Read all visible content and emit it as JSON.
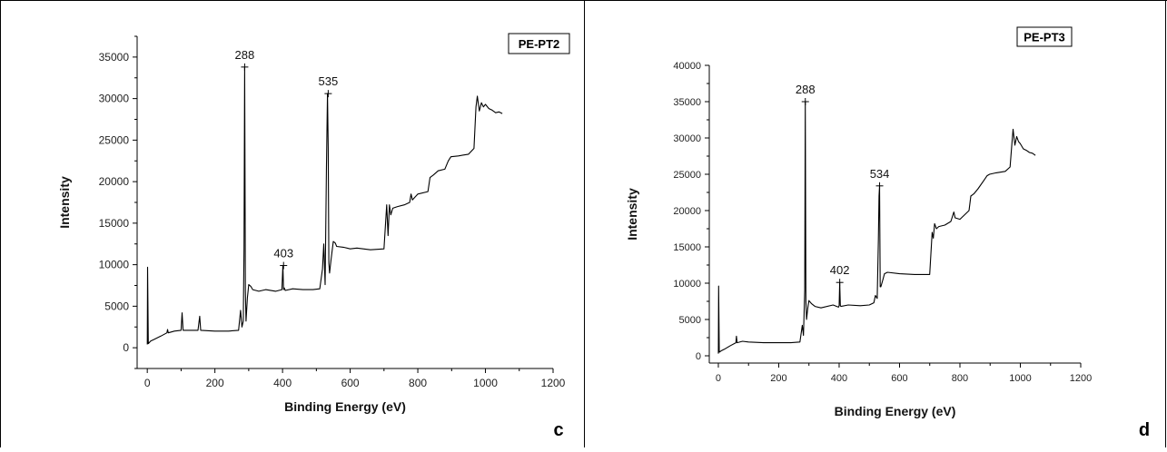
{
  "chart_data": [
    {
      "type": "line",
      "panel_letter": "c",
      "legend_label": "PE-PT2",
      "xlabel": "Binding Energy (eV)",
      "ylabel": "Intensity",
      "xlim": [
        -30,
        1200
      ],
      "ylim": [
        -2500,
        37500
      ],
      "xticks": [
        0,
        200,
        400,
        600,
        800,
        1000,
        1200
      ],
      "yticks": [
        0,
        5000,
        10000,
        15000,
        20000,
        25000,
        30000,
        35000
      ],
      "annotations": [
        {
          "text": "288",
          "x": 288,
          "y": 33800
        },
        {
          "text": "535",
          "x": 535,
          "y": 30600
        },
        {
          "text": "403",
          "x": 403,
          "y": 9900
        }
      ],
      "series": [
        {
          "x": [
            0,
            1,
            3,
            10,
            20,
            40,
            58,
            60,
            62,
            80,
            100,
            103,
            106,
            120,
            150,
            155,
            158,
            200,
            240,
            270,
            276,
            280,
            284,
            286,
            288,
            290,
            292,
            296,
            300,
            306,
            312,
            330,
            350,
            380,
            398,
            401,
            403,
            405,
            408,
            430,
            460,
            490,
            510,
            518,
            522,
            526,
            530,
            533,
            535,
            537,
            539,
            543,
            550,
            556,
            560,
            580,
            600,
            620,
            660,
            700,
            708,
            712,
            716,
            720,
            726,
            740,
            760,
            776,
            780,
            784,
            800,
            830,
            836,
            846,
            860,
            880,
            890,
            898,
            920,
            950,
            966,
            972,
            976,
            982,
            988,
            994,
            1000,
            1010,
            1020,
            1030,
            1040,
            1050
          ],
          "y": [
            400,
            9700,
            500,
            800,
            1000,
            1400,
            1800,
            2200,
            1800,
            2000,
            2100,
            4200,
            2100,
            2100,
            2100,
            3800,
            2100,
            2000,
            2000,
            2100,
            4500,
            2500,
            3200,
            12000,
            33800,
            6800,
            3200,
            6000,
            7600,
            7400,
            7000,
            6800,
            7000,
            6800,
            7000,
            9900,
            7000,
            7200,
            6900,
            7100,
            7000,
            7000,
            7100,
            9500,
            12500,
            7600,
            22000,
            30600,
            24000,
            10200,
            9000,
            10500,
            12800,
            12600,
            12200,
            12100,
            11900,
            12000,
            11800,
            11900,
            17200,
            13500,
            17200,
            16000,
            16800,
            17000,
            17200,
            17500,
            18500,
            17800,
            18500,
            18800,
            20500,
            20800,
            21300,
            21500,
            22500,
            23000,
            23100,
            23300,
            24000,
            29000,
            30300,
            28500,
            29500,
            29000,
            29300,
            28800,
            28600,
            28300,
            28400,
            28200
          ]
        }
      ]
    },
    {
      "type": "line",
      "panel_letter": "d",
      "legend_label": "PE-PT3",
      "xlabel": "Binding Energy (eV)",
      "ylabel": "Intensity",
      "xlim": [
        -30,
        1200
      ],
      "ylim": [
        -1000,
        40000
      ],
      "xticks": [
        0,
        200,
        400,
        600,
        800,
        1000,
        1200
      ],
      "yticks": [
        0,
        5000,
        10000,
        15000,
        20000,
        25000,
        30000,
        35000,
        40000
      ],
      "annotations": [
        {
          "text": "288",
          "x": 288,
          "y": 35000
        },
        {
          "text": "534",
          "x": 534,
          "y": 23400
        },
        {
          "text": "402",
          "x": 402,
          "y": 10100
        }
      ],
      "series": [
        {
          "x": [
            0,
            1,
            3,
            10,
            20,
            40,
            58,
            60,
            62,
            80,
            100,
            150,
            200,
            240,
            270,
            278,
            282,
            286,
            288,
            290,
            292,
            296,
            300,
            308,
            320,
            340,
            380,
            398,
            400,
            402,
            404,
            406,
            430,
            470,
            500,
            515,
            520,
            526,
            530,
            532,
            534,
            536,
            538,
            545,
            550,
            560,
            600,
            650,
            700,
            708,
            712,
            716,
            722,
            730,
            750,
            770,
            780,
            784,
            800,
            830,
            836,
            846,
            860,
            880,
            890,
            898,
            920,
            950,
            966,
            972,
            976,
            982,
            988,
            994,
            1000,
            1010,
            1020,
            1030,
            1040,
            1050
          ],
          "y": [
            300,
            9600,
            500,
            700,
            900,
            1400,
            1800,
            2700,
            1800,
            2000,
            1900,
            1800,
            1800,
            1800,
            1900,
            4200,
            2800,
            9000,
            35000,
            7500,
            5000,
            6500,
            7600,
            7200,
            6800,
            6600,
            7000,
            6700,
            6900,
            10100,
            6900,
            6800,
            7000,
            6900,
            7000,
            7300,
            8300,
            7900,
            16000,
            22000,
            23400,
            9500,
            9500,
            10500,
            11300,
            11500,
            11300,
            11200,
            11200,
            17000,
            16200,
            18200,
            17500,
            17800,
            18000,
            18500,
            19800,
            19000,
            18800,
            20000,
            22000,
            22300,
            23000,
            24200,
            24800,
            25000,
            25200,
            25400,
            26000,
            29200,
            31200,
            29000,
            30200,
            29500,
            29200,
            28500,
            28300,
            28000,
            27900,
            27600
          ]
        }
      ]
    }
  ]
}
